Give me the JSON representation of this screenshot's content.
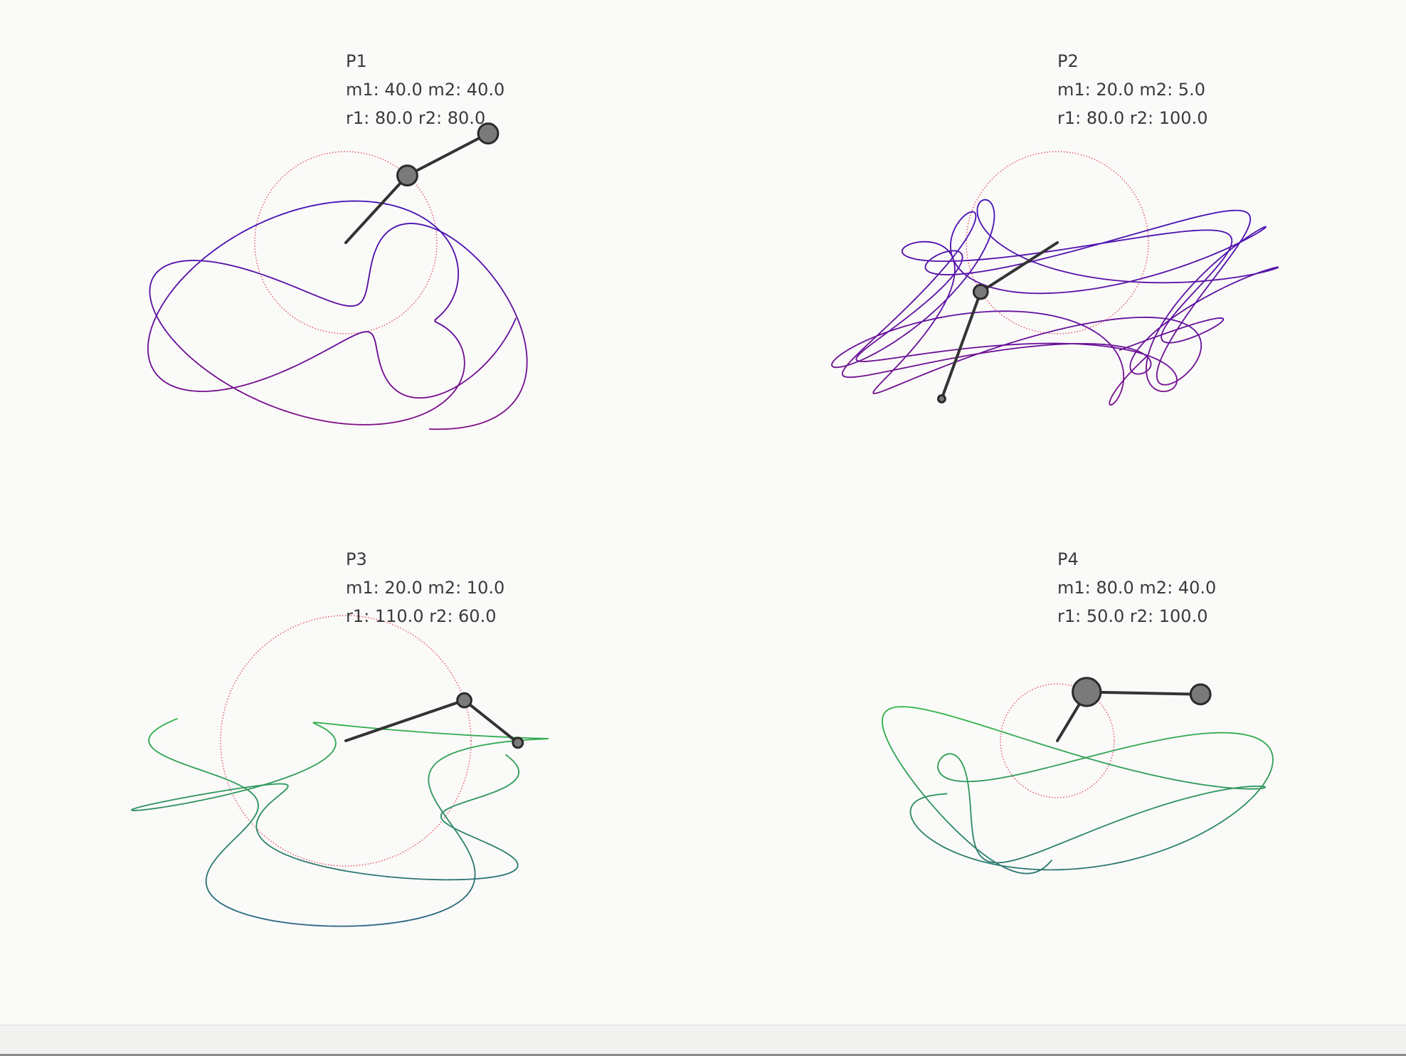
{
  "pendulums": [
    {
      "id": "P1",
      "title": "P1",
      "masses_text": "m1: 40.0 m2: 40.0",
      "lengths_text": "r1: 80.0 r2: 80.0",
      "m1": 40.0,
      "m2": 40.0,
      "r1": 80.0,
      "r2": 80.0,
      "trail_colors": [
        "#1a12d6",
        "#8a1280"
      ],
      "circle_color": "#e0304a"
    },
    {
      "id": "P2",
      "title": "P2",
      "masses_text": "m1: 20.0 m2: 5.0",
      "lengths_text": "r1: 80.0 r2: 100.0",
      "m1": 20.0,
      "m2": 5.0,
      "r1": 80.0,
      "r2": 100.0,
      "trail_colors": [
        "#1a12d6",
        "#8a1280"
      ],
      "circle_color": "#e0304a"
    },
    {
      "id": "P3",
      "title": "P3",
      "masses_text": "m1: 20.0 m2: 10.0",
      "lengths_text": "r1: 110.0 r2: 60.0",
      "m1": 20.0,
      "m2": 10.0,
      "r1": 110.0,
      "r2": 60.0,
      "trail_colors": [
        "#3ef022",
        "#2a5a8a"
      ],
      "circle_color": "#e0304a"
    },
    {
      "id": "P4",
      "title": "P4",
      "masses_text": "m1: 80.0 m2: 40.0",
      "lengths_text": "r1: 50.0 r2: 100.0",
      "m1": 80.0,
      "m2": 40.0,
      "r1": 50.0,
      "r2": 100.0,
      "trail_colors": [
        "#3ef022",
        "#2a5a8a"
      ],
      "circle_color": "#e0304a"
    }
  ],
  "colors": {
    "arm": "#333333",
    "bob_fill": "#7a7a7a",
    "bob_stroke": "#2a2a2a",
    "background": "#fafaf9"
  }
}
